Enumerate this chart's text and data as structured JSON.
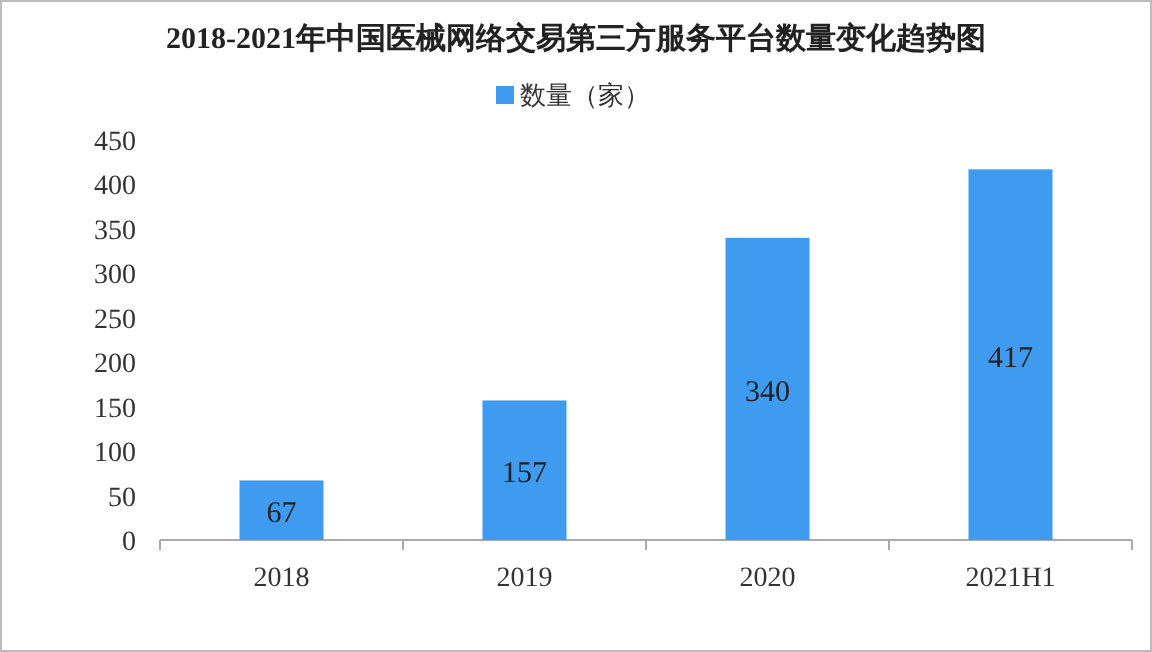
{
  "chart_data": {
    "type": "bar",
    "title": "2018-2021年中国医械网络交易第三方服务平台数量变化趋势图",
    "categories": [
      "2018",
      "2019",
      "2020",
      "2021H1"
    ],
    "series": [
      {
        "name": "数量（家）",
        "color": "#3e9bf0",
        "values": [
          67,
          157,
          340,
          417
        ]
      }
    ],
    "ylim": [
      0,
      450
    ],
    "yticks": [
      0,
      50,
      100,
      150,
      200,
      250,
      300,
      350,
      400,
      450
    ],
    "data_labels": true,
    "legend": "top",
    "grid": false
  }
}
